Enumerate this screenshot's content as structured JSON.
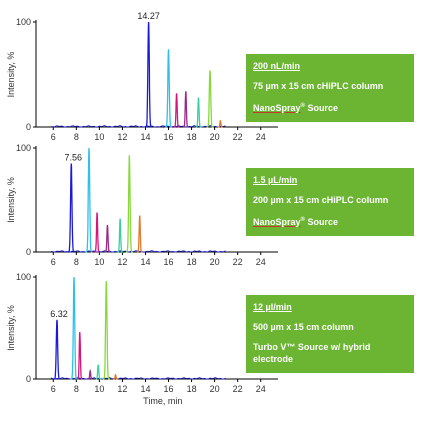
{
  "chart_data": [
    {
      "type": "line",
      "ylabel": "Intensity, %",
      "xlabel": "",
      "xlim": [
        4.5,
        25.5
      ],
      "ylim": [
        0,
        100
      ],
      "x_ticks": [
        6,
        8,
        10,
        12,
        14,
        16,
        18,
        20,
        22,
        24
      ],
      "y_ticks": [
        0,
        100
      ],
      "peak_label": "14.27",
      "series": [
        {
          "color": "#1a1ad6",
          "peak_x": 14.27,
          "peak_y": 100,
          "width": 0.1
        },
        {
          "color": "#2fc0e6",
          "peak_x": 16.0,
          "peak_y": 74,
          "width": 0.1
        },
        {
          "color": "#d6157a",
          "peak_x": 16.7,
          "peak_y": 32,
          "width": 0.08
        },
        {
          "color": "#9b2a8a",
          "peak_x": 17.5,
          "peak_y": 34,
          "width": 0.08
        },
        {
          "color": "#3ad09a",
          "peak_x": 18.6,
          "peak_y": 28,
          "width": 0.08
        },
        {
          "color": "#86d93a",
          "peak_x": 19.6,
          "peak_y": 54,
          "width": 0.1
        },
        {
          "color": "#e07a2a",
          "peak_x": 20.5,
          "peak_y": 6,
          "width": 0.07
        }
      ]
    },
    {
      "type": "line",
      "ylabel": "Intensity, %",
      "xlabel": "",
      "xlim": [
        4.5,
        25.5
      ],
      "ylim": [
        0,
        100
      ],
      "x_ticks": [
        6,
        8,
        10,
        12,
        14,
        16,
        18,
        20,
        22,
        24
      ],
      "y_ticks": [
        0,
        100
      ],
      "peak_label": "7.56",
      "series": [
        {
          "color": "#1a1ad6",
          "peak_x": 7.56,
          "peak_y": 85,
          "width": 0.1
        },
        {
          "color": "#2fc0e6",
          "peak_x": 9.1,
          "peak_y": 100,
          "width": 0.1
        },
        {
          "color": "#d6157a",
          "peak_x": 9.8,
          "peak_y": 38,
          "width": 0.08
        },
        {
          "color": "#9b2a8a",
          "peak_x": 10.7,
          "peak_y": 26,
          "width": 0.08
        },
        {
          "color": "#3ad09a",
          "peak_x": 11.8,
          "peak_y": 32,
          "width": 0.08
        },
        {
          "color": "#86d93a",
          "peak_x": 12.6,
          "peak_y": 93,
          "width": 0.1
        },
        {
          "color": "#e07a2a",
          "peak_x": 13.5,
          "peak_y": 35,
          "width": 0.08
        }
      ]
    },
    {
      "type": "line",
      "ylabel": "Intensity, %",
      "xlabel": "Time, min",
      "xlim": [
        4.5,
        25.5
      ],
      "ylim": [
        0,
        100
      ],
      "x_ticks": [
        6,
        8,
        10,
        12,
        14,
        16,
        18,
        20,
        22,
        24
      ],
      "y_ticks": [
        0,
        100
      ],
      "peak_label": "6.32",
      "series": [
        {
          "color": "#1a1ad6",
          "peak_x": 6.32,
          "peak_y": 58,
          "width": 0.1
        },
        {
          "color": "#2fc0e6",
          "peak_x": 7.8,
          "peak_y": 100,
          "width": 0.1
        },
        {
          "color": "#d6157a",
          "peak_x": 8.3,
          "peak_y": 46,
          "width": 0.08
        },
        {
          "color": "#9b2a8a",
          "peak_x": 9.2,
          "peak_y": 8,
          "width": 0.07
        },
        {
          "color": "#3ad09a",
          "peak_x": 9.9,
          "peak_y": 14,
          "width": 0.08
        },
        {
          "color": "#86d93a",
          "peak_x": 10.6,
          "peak_y": 96,
          "width": 0.1
        },
        {
          "color": "#e07a2a",
          "peak_x": 11.4,
          "peak_y": 4,
          "width": 0.07
        }
      ]
    }
  ],
  "info_boxes": [
    {
      "rate": "200 nL/min",
      "column": "75 µm x 15 cm cHiPLC column",
      "source": "NanoSpray",
      "source_suffix": " Source",
      "reg": "®"
    },
    {
      "rate": "1.5 µL/min",
      "column": "200 µm x 15 cm cHiPLC column",
      "source": "NanoSpray",
      "source_suffix": " Source",
      "reg": "®"
    },
    {
      "rate": "12 µl/min",
      "column": "500 µm x 15 cm column",
      "source": "Turbo V™ Source w/  hybrid electrode",
      "source_suffix": "",
      "reg": ""
    }
  ]
}
